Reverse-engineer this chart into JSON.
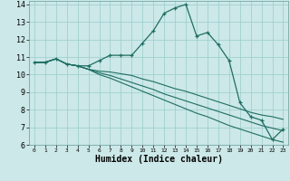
{
  "title": "",
  "xlabel": "Humidex (Indice chaleur)",
  "xlim": [
    -0.5,
    23.5
  ],
  "ylim": [
    6,
    14.2
  ],
  "xticks": [
    0,
    1,
    2,
    3,
    4,
    5,
    6,
    7,
    8,
    9,
    10,
    11,
    12,
    13,
    14,
    15,
    16,
    17,
    18,
    19,
    20,
    21,
    22,
    23
  ],
  "yticks": [
    6,
    7,
    8,
    9,
    10,
    11,
    12,
    13,
    14
  ],
  "line_color": "#1e6e62",
  "bg_color": "#cce8e8",
  "grid_color": "#99cccc",
  "lines": [
    {
      "x": [
        0,
        1,
        2,
        3,
        4,
        5,
        6,
        7,
        8,
        9,
        10,
        11,
        12,
        13,
        14,
        15,
        16,
        17,
        18,
        19,
        20,
        21,
        22,
        23
      ],
      "y": [
        10.7,
        10.7,
        10.9,
        10.6,
        10.5,
        10.5,
        10.8,
        11.1,
        11.1,
        11.1,
        11.8,
        12.5,
        13.5,
        13.8,
        14.0,
        12.2,
        12.4,
        11.7,
        10.8,
        8.4,
        7.6,
        7.4,
        6.3,
        6.9
      ],
      "marker": "+"
    },
    {
      "x": [
        0,
        1,
        2,
        3,
        4,
        5,
        6,
        7,
        8,
        9,
        10,
        11,
        12,
        13,
        14,
        15,
        16,
        17,
        18,
        19,
        20,
        21,
        22,
        23
      ],
      "y": [
        10.7,
        10.7,
        10.9,
        10.6,
        10.5,
        10.3,
        10.2,
        10.15,
        10.05,
        9.95,
        9.75,
        9.6,
        9.4,
        9.2,
        9.05,
        8.85,
        8.65,
        8.45,
        8.25,
        8.05,
        7.85,
        7.7,
        7.6,
        7.45
      ],
      "marker": null
    },
    {
      "x": [
        0,
        1,
        2,
        3,
        4,
        5,
        6,
        7,
        8,
        9,
        10,
        11,
        12,
        13,
        14,
        15,
        16,
        17,
        18,
        19,
        20,
        21,
        22,
        23
      ],
      "y": [
        10.7,
        10.7,
        10.9,
        10.6,
        10.5,
        10.3,
        10.1,
        9.95,
        9.75,
        9.55,
        9.35,
        9.15,
        8.9,
        8.7,
        8.5,
        8.3,
        8.1,
        7.9,
        7.7,
        7.5,
        7.3,
        7.1,
        6.95,
        6.8
      ],
      "marker": null
    },
    {
      "x": [
        0,
        1,
        2,
        3,
        4,
        5,
        6,
        7,
        8,
        9,
        10,
        11,
        12,
        13,
        14,
        15,
        16,
        17,
        18,
        19,
        20,
        21,
        22,
        23
      ],
      "y": [
        10.7,
        10.7,
        10.9,
        10.6,
        10.5,
        10.3,
        10.0,
        9.8,
        9.55,
        9.3,
        9.05,
        8.8,
        8.55,
        8.3,
        8.05,
        7.8,
        7.6,
        7.35,
        7.1,
        6.9,
        6.7,
        6.5,
        6.3,
        6.15
      ],
      "marker": null
    }
  ]
}
